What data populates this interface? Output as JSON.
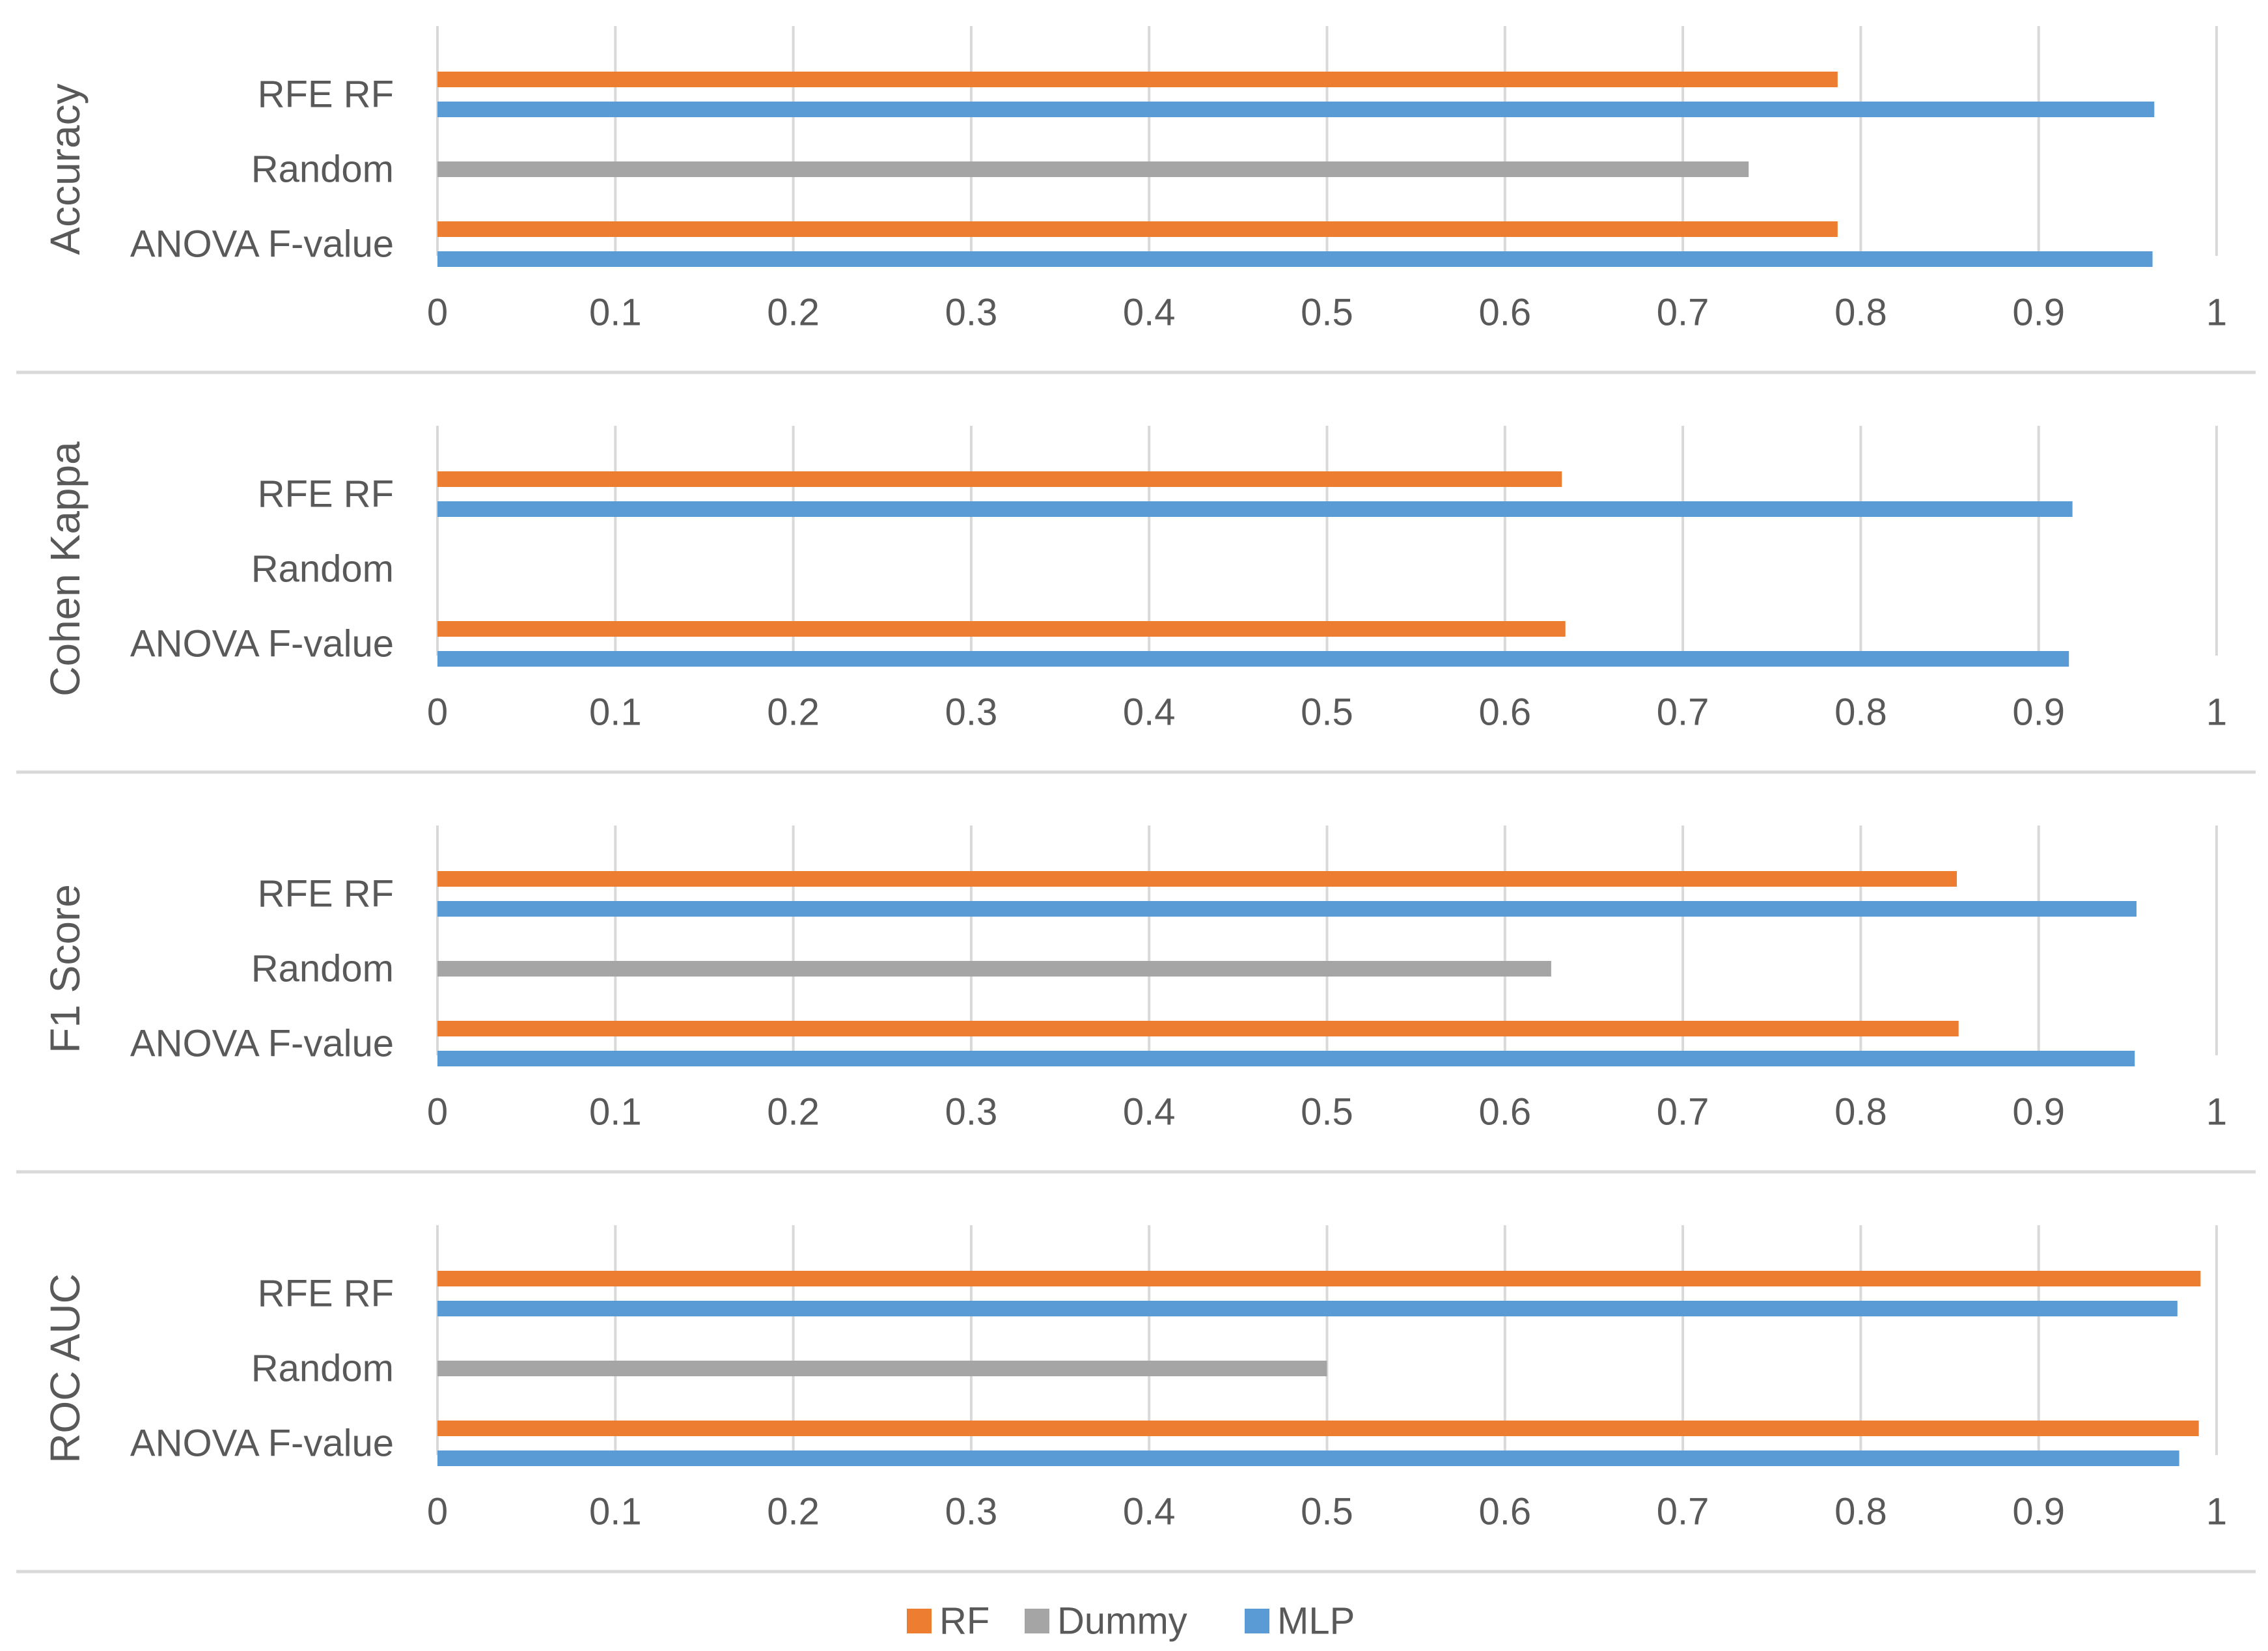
{
  "colors": {
    "RF": "#ED7D31",
    "Dummy": "#A5A5A5",
    "MLP": "#5B9BD5",
    "grid": "#D9D9D9",
    "separator": "#D9D9D9",
    "text": "#595959"
  },
  "chart_data": {
    "type": "bar",
    "orientation": "horizontal",
    "xlim": [
      0,
      1
    ],
    "xticks": [
      "0",
      "0.1",
      "0.2",
      "0.3",
      "0.4",
      "0.5",
      "0.6",
      "0.7",
      "0.8",
      "0.9",
      "1"
    ],
    "legend": {
      "position": "bottom",
      "entries": [
        {
          "name": "RF",
          "color_key": "RF"
        },
        {
          "name": "Dummy",
          "color_key": "Dummy"
        },
        {
          "name": "MLP",
          "color_key": "MLP"
        }
      ]
    },
    "panels": [
      {
        "ylabel": "Accuracy",
        "categories": [
          "RFE RF",
          "Random",
          "ANOVA F-value"
        ],
        "series": [
          {
            "name": "RF",
            "values": [
              0.787,
              null,
              0.787
            ]
          },
          {
            "name": "Dummy",
            "values": [
              null,
              0.737,
              null
            ]
          },
          {
            "name": "MLP",
            "values": [
              0.965,
              null,
              0.964
            ]
          }
        ]
      },
      {
        "ylabel": "Cohen Kappa",
        "categories": [
          "RFE RF",
          "Random",
          "ANOVA F-value"
        ],
        "series": [
          {
            "name": "RF",
            "values": [
              0.632,
              null,
              0.634
            ]
          },
          {
            "name": "Dummy",
            "values": [
              null,
              0.0,
              null
            ]
          },
          {
            "name": "MLP",
            "values": [
              0.919,
              null,
              0.917
            ]
          }
        ]
      },
      {
        "ylabel": "F1 Score",
        "categories": [
          "RFE RF",
          "Random",
          "ANOVA F-value"
        ],
        "series": [
          {
            "name": "RF",
            "values": [
              0.854,
              null,
              0.855
            ]
          },
          {
            "name": "Dummy",
            "values": [
              null,
              0.626,
              null
            ]
          },
          {
            "name": "MLP",
            "values": [
              0.955,
              null,
              0.954
            ]
          }
        ]
      },
      {
        "ylabel": "ROC AUC",
        "categories": [
          "RFE RF",
          "Random",
          "ANOVA F-value"
        ],
        "series": [
          {
            "name": "RF",
            "values": [
              0.991,
              null,
              0.99
            ]
          },
          {
            "name": "Dummy",
            "values": [
              null,
              0.5,
              null
            ]
          },
          {
            "name": "MLP",
            "values": [
              0.978,
              null,
              0.979
            ]
          }
        ]
      }
    ]
  }
}
